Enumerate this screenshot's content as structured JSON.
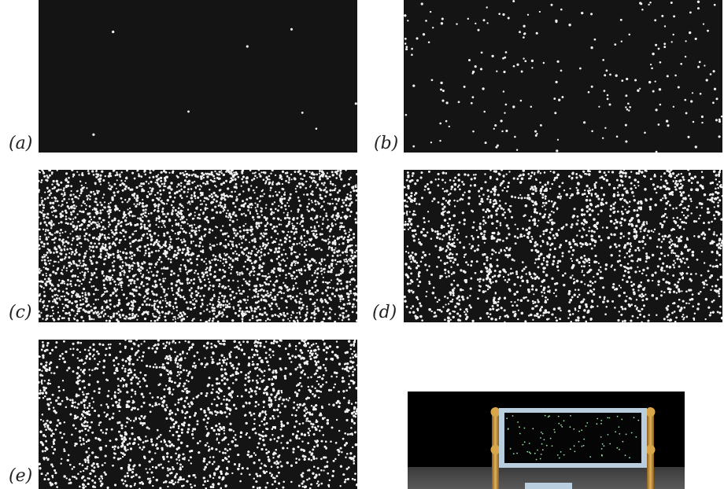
{
  "figure": {
    "panels": [
      {
        "id": "a",
        "label": "(a)"
      },
      {
        "id": "b",
        "label": "(b)"
      },
      {
        "id": "c",
        "label": "(c)"
      },
      {
        "id": "d",
        "label": "(d)"
      },
      {
        "id": "e",
        "label": "(e)"
      }
    ],
    "colors": {
      "panel_background": "#141414",
      "dot": "#f2f2f2",
      "apparatus_dots": "#9fe0a8",
      "frame": "#b9cfe0",
      "post": "#c8953a"
    }
  }
}
